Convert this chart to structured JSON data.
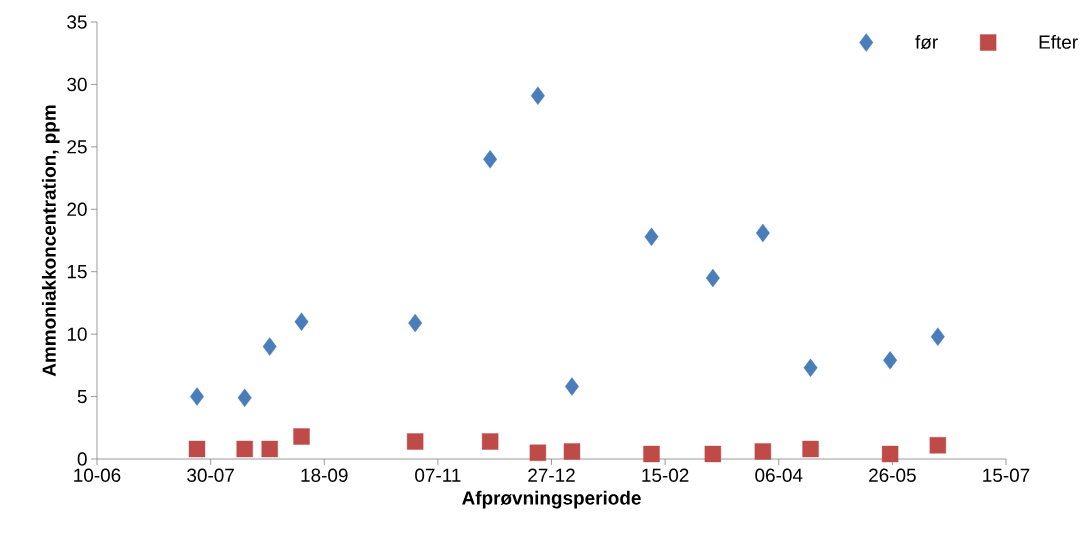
{
  "chart_data": {
    "type": "scatter",
    "xlabel": "Afprøvningsperiode",
    "ylabel": "Ammoniakkoncentration, ppm",
    "x": [
      "2001-07-24",
      "2001-08-14",
      "2001-08-25",
      "2001-09-08",
      "2001-10-28",
      "2001-11-30",
      "2001-12-21",
      "2002-01-05",
      "2002-02-09",
      "2002-03-08",
      "2002-03-30",
      "2002-04-20",
      "2002-05-25",
      "2002-06-15"
    ],
    "series": [
      {
        "name": "før",
        "color": "#4a7ebb",
        "marker": "diamond",
        "values": [
          5.0,
          4.9,
          9.0,
          11.0,
          10.9,
          24.0,
          29.1,
          5.8,
          17.8,
          14.5,
          18.1,
          7.3,
          7.9,
          9.8
        ]
      },
      {
        "name": "Efter",
        "color": "#be4b48",
        "marker": "square",
        "values": [
          0.8,
          0.8,
          0.8,
          1.8,
          1.4,
          1.4,
          0.5,
          0.6,
          0.4,
          0.4,
          0.6,
          0.8,
          0.4,
          1.1
        ]
      }
    ],
    "xlim": [
      "2001-06-10",
      "2002-07-15"
    ],
    "xticks": [
      {
        "value": "2001-06-10",
        "label": "10-06"
      },
      {
        "value": "2001-07-30",
        "label": "30-07"
      },
      {
        "value": "2001-09-18",
        "label": "18-09"
      },
      {
        "value": "2001-11-07",
        "label": "07-11"
      },
      {
        "value": "2001-12-27",
        "label": "27-12"
      },
      {
        "value": "2002-02-15",
        "label": "15-02"
      },
      {
        "value": "2002-04-06",
        "label": "06-04"
      },
      {
        "value": "2002-05-26",
        "label": "26-05"
      },
      {
        "value": "2002-07-15",
        "label": "15-07"
      }
    ],
    "ylim": [
      0,
      35
    ],
    "yticks": [
      0,
      5,
      10,
      15,
      20,
      25,
      30,
      35
    ],
    "legend": "top right",
    "grid": false
  }
}
